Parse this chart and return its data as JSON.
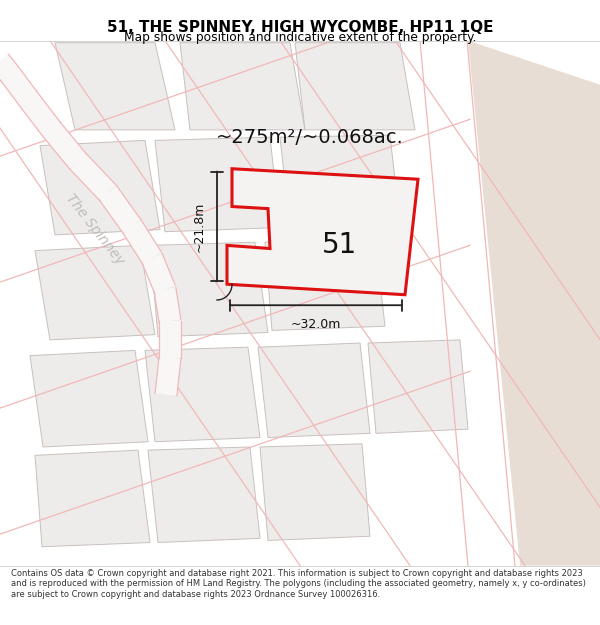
{
  "title": "51, THE SPINNEY, HIGH WYCOMBE, HP11 1QE",
  "subtitle": "Map shows position and indicative extent of the property.",
  "footer": "Contains OS data © Crown copyright and database right 2021. This information is subject to Crown copyright and database rights 2023 and is reproduced with the permission of HM Land Registry. The polygons (including the associated geometry, namely x, y co-ordinates) are subject to Crown copyright and database rights 2023 Ordnance Survey 100026316.",
  "area_label": "~275m²/~0.068ac.",
  "number_label": "51",
  "width_label": "~32.0m",
  "height_label": "~21.8m",
  "street_label": "The Spinney",
  "bg_color": "#f5f0ec",
  "map_bg": "#f8f7f6",
  "right_strip_color": "#e8ddd4",
  "block_fill": "#eeeceb",
  "block_edge": "#c8c0bc",
  "road_pink": "#f0b8b8",
  "highlight_color": "#dd1111",
  "plot_fill": "#f5f3f2",
  "dim_color": "#222222",
  "text_color": "#111111",
  "street_label_color": "#c0bcba",
  "figsize": [
    6.0,
    6.25
  ],
  "dpi": 100
}
